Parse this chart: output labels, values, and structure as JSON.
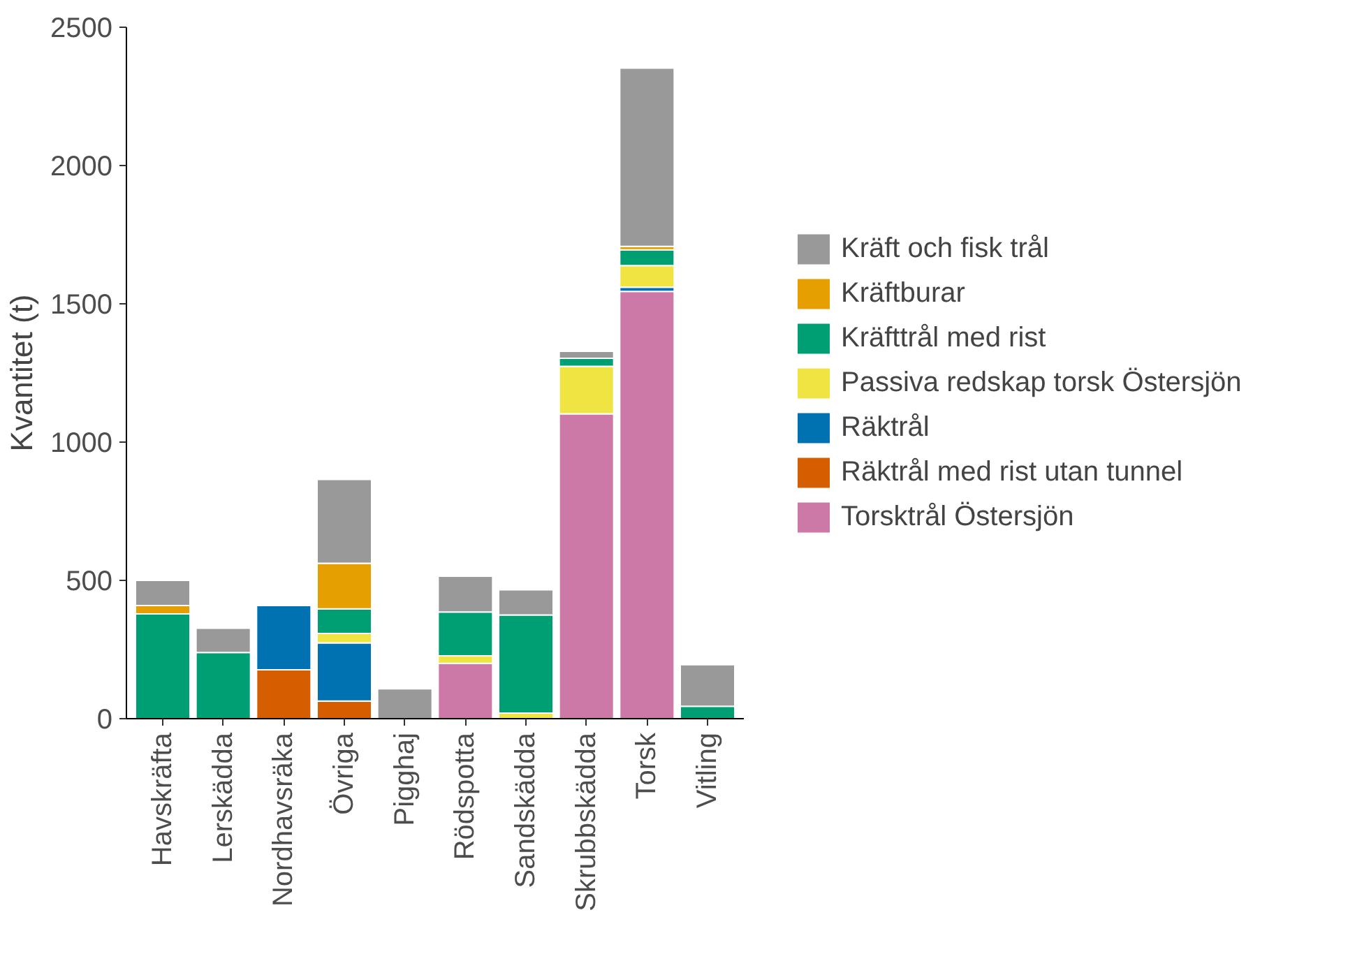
{
  "chart_data": {
    "type": "bar",
    "stacked": true,
    "ylabel": "Kvantitet (t)",
    "categories": [
      "Havskräfta",
      "Lerskädda",
      "Nordhavsräka",
      "Övriga",
      "Pigghaj",
      "Rödspotta",
      "Sandskädda",
      "Skrubbskädda",
      "Torsk",
      "Vitling"
    ],
    "series": [
      {
        "name": "Torsktrål Östersjön",
        "color": "#cc79a7",
        "values": [
          null,
          null,
          null,
          null,
          null,
          200,
          null,
          1102,
          1545,
          null
        ]
      },
      {
        "name": "Räktrål med rist utan tunnel",
        "color": "#d55e00",
        "values": [
          null,
          null,
          177,
          64,
          null,
          null,
          null,
          null,
          null,
          null
        ]
      },
      {
        "name": "Räktrål",
        "color": "#0072b2",
        "values": [
          null,
          null,
          232,
          210,
          null,
          null,
          null,
          null,
          15,
          null
        ]
      },
      {
        "name": "Passiva redskap torsk Östersjön",
        "color": "#f0e442",
        "values": [
          null,
          null,
          null,
          34,
          null,
          27,
          20,
          172,
          78,
          null
        ]
      },
      {
        "name": "Kräfttrål med rist",
        "color": "#009e73",
        "values": [
          379,
          239,
          null,
          89,
          null,
          159,
          355,
          29,
          57,
          45
        ]
      },
      {
        "name": "Kräftburar",
        "color": "#e69f00",
        "values": [
          30,
          null,
          null,
          165,
          null,
          null,
          null,
          null,
          13,
          null
        ]
      },
      {
        "name": "Kräft och fisk trål",
        "color": "#999999",
        "values": [
          91,
          88,
          null,
          303,
          108,
          129,
          91,
          25,
          644,
          150
        ]
      }
    ],
    "ylim": [
      0,
      2500
    ],
    "yticks": [
      0,
      500,
      1000,
      1500,
      2000,
      2500
    ],
    "grid": false,
    "legend": "right"
  }
}
